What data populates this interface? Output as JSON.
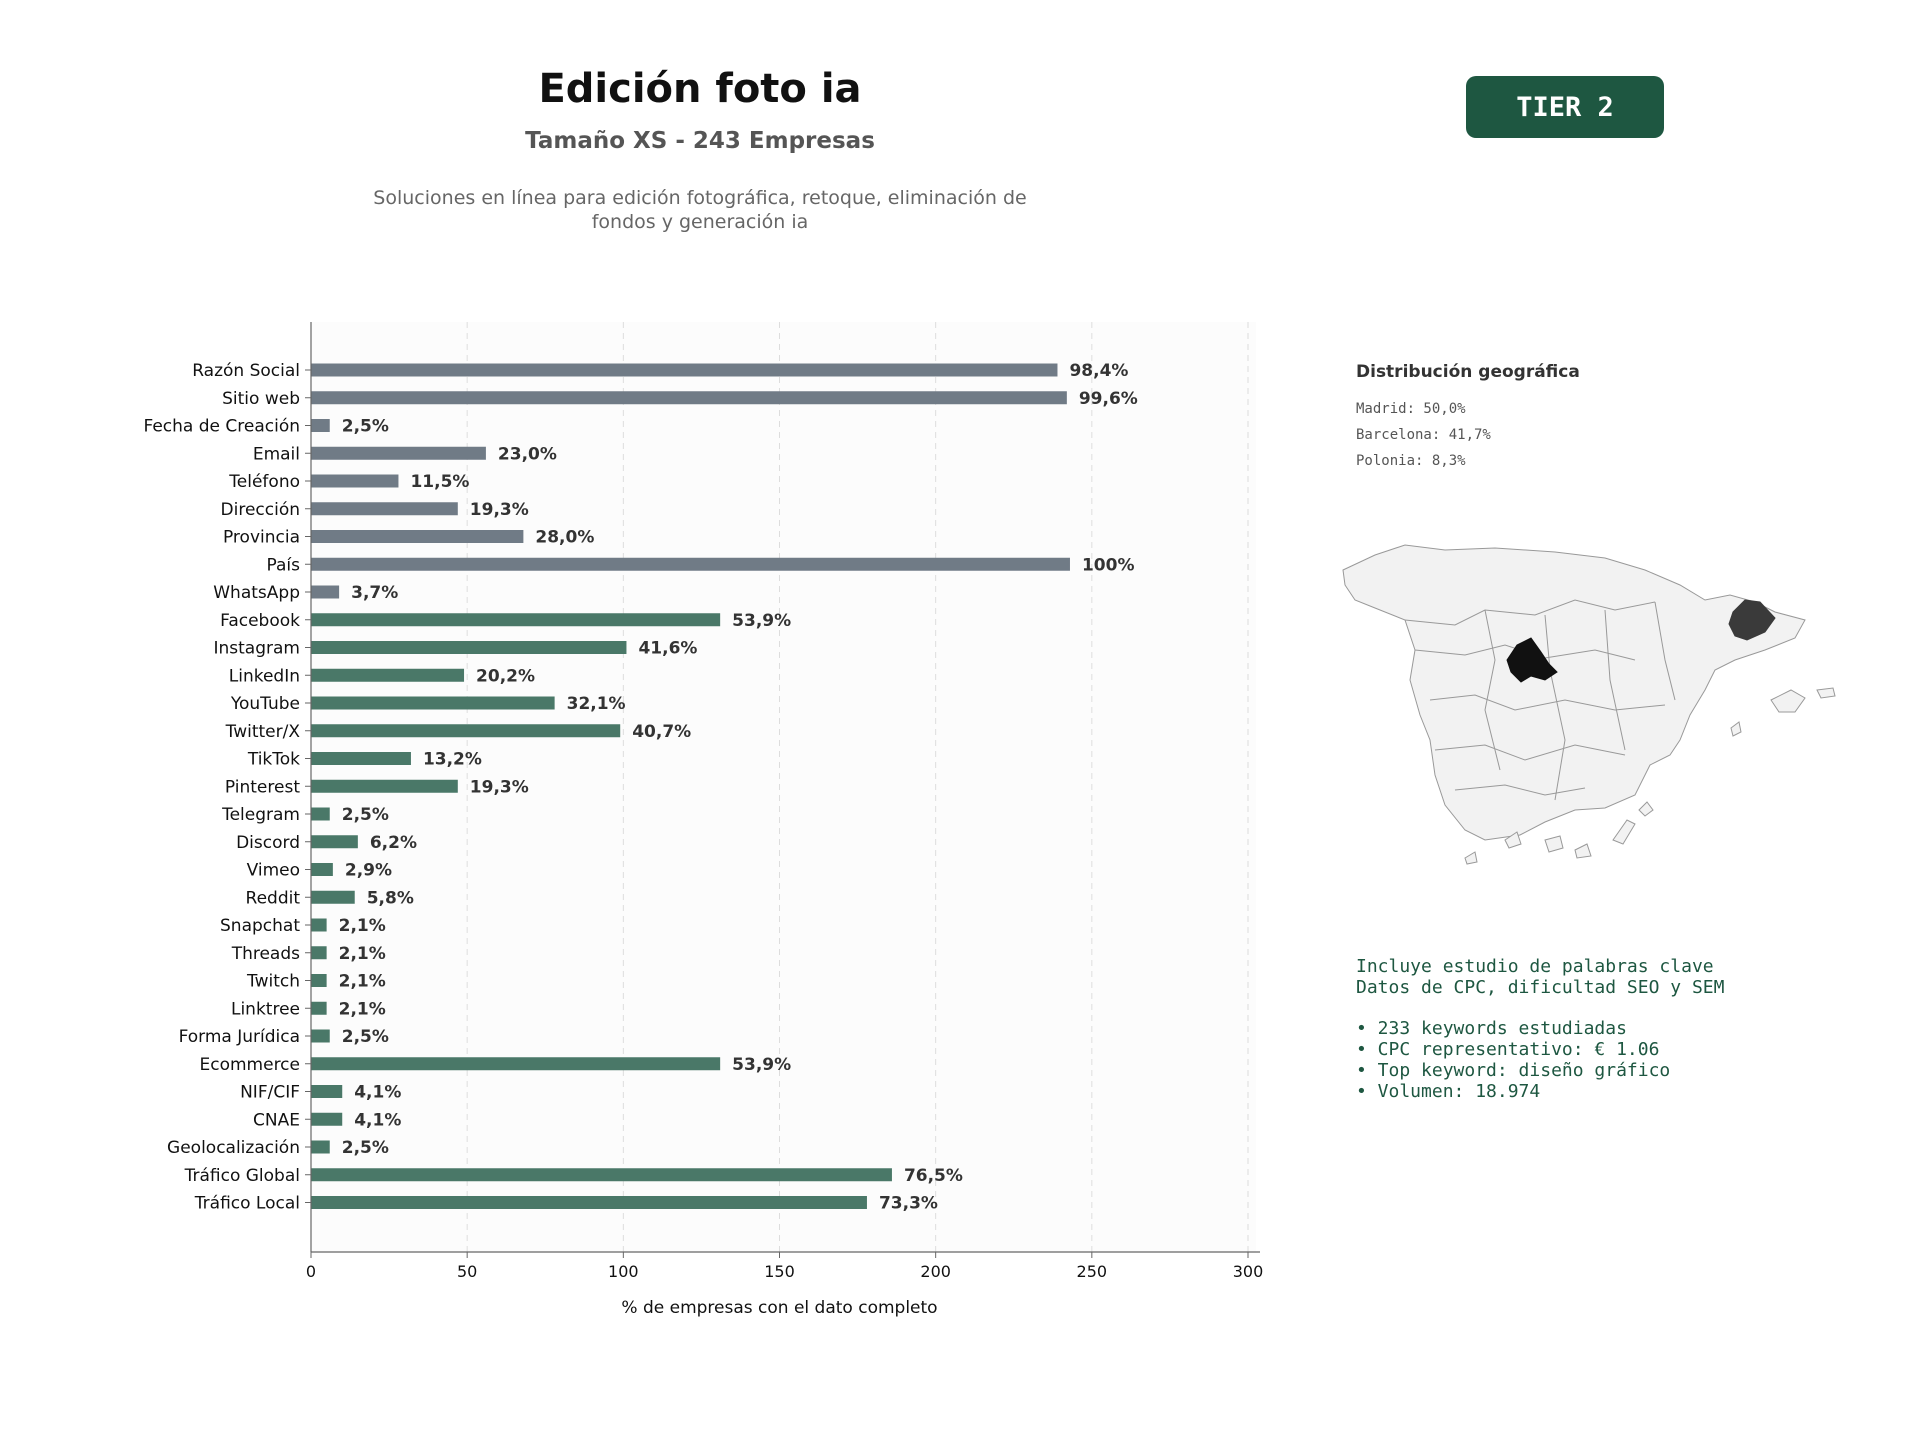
{
  "header": {
    "title": "Edición foto ia",
    "subtitle": "Tamaño XS - 243 Empresas",
    "description": "Soluciones en línea para edición fotográfica, retoque, eliminación de fondos y generación ia",
    "tier_label": "TIER 2"
  },
  "chart_data": {
    "type": "bar",
    "orientation": "horizontal",
    "title": "",
    "xlabel": "% de empresas con el dato completo",
    "ylabel": "",
    "xlim": [
      0,
      300
    ],
    "xticks": [
      0,
      50,
      100,
      150,
      200,
      250,
      300
    ],
    "grid": "vertical dashed",
    "categories": [
      "Razón Social",
      "Sitio web",
      "Fecha de Creación",
      "Email",
      "Teléfono",
      "Dirección",
      "Provincia",
      "País",
      "WhatsApp",
      "Facebook",
      "Instagram",
      "LinkedIn",
      "YouTube",
      "Twitter/X",
      "TikTok",
      "Pinterest",
      "Telegram",
      "Discord",
      "Vimeo",
      "Reddit",
      "Snapchat",
      "Threads",
      "Twitch",
      "Linktree",
      "Forma Jurídica",
      "Ecommerce",
      "NIF/CIF",
      "CNAE",
      "Geolocalización",
      "Tráfico Global",
      "Tráfico Local"
    ],
    "values": [
      239,
      242,
      6,
      56,
      28,
      47,
      68,
      243,
      9,
      131,
      101,
      49,
      78,
      99,
      32,
      47,
      6,
      15,
      7,
      14,
      5,
      5,
      5,
      5,
      6,
      131,
      10,
      10,
      6,
      186,
      178
    ],
    "labels": [
      "98,4%",
      "99,6%",
      "2,5%",
      "23,0%",
      "11,5%",
      "19,3%",
      "28,0%",
      "100%",
      "3,7%",
      "53,9%",
      "41,6%",
      "20,2%",
      "32,1%",
      "40,7%",
      "13,2%",
      "19,3%",
      "2,5%",
      "6,2%",
      "2,9%",
      "5,8%",
      "2,1%",
      "2,1%",
      "2,1%",
      "2,1%",
      "2,5%",
      "53,9%",
      "4,1%",
      "4,1%",
      "2,5%",
      "76,5%",
      "73,3%"
    ],
    "groups": [
      "gray",
      "gray",
      "gray",
      "gray",
      "gray",
      "gray",
      "gray",
      "gray",
      "gray",
      "green",
      "green",
      "green",
      "green",
      "green",
      "green",
      "green",
      "green",
      "green",
      "green",
      "green",
      "green",
      "green",
      "green",
      "green",
      "green",
      "green",
      "green",
      "green",
      "green",
      "green",
      "green"
    ],
    "colors": {
      "gray": "#707b86",
      "green": "#4a7868",
      "label": "#333333",
      "axis": "#666666",
      "grid": "#dddddd",
      "plot_bg": "#fcfcfc"
    }
  },
  "geo": {
    "title": "Distribución geográfica",
    "items": [
      "Madrid: 50,0%",
      "Barcelona: 41,7%",
      "Polonia: 8,3%"
    ],
    "map_icon": "spain-provinces-map-icon",
    "colors": {
      "madrid": "#111111",
      "barcelona": "#3a3a3a",
      "other": "#f2f2f2",
      "border": "#999999"
    }
  },
  "keywords": {
    "intro": [
      "Incluye estudio de palabras clave",
      "Datos de CPC, dificultad SEO y SEM"
    ],
    "items": [
      "• 233 keywords estudiadas",
      "• CPC representativo: € 1.06",
      "• Top keyword: diseño gráfico",
      "• Volumen: 18.974"
    ]
  }
}
